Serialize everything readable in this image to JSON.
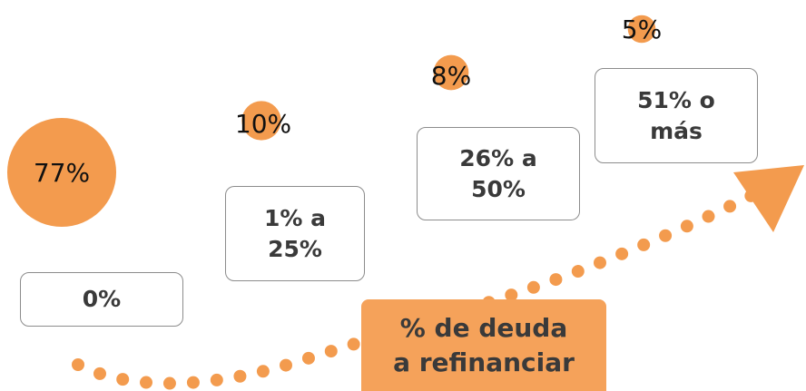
{
  "chart_data": {
    "type": "bubble",
    "title": "% de deuda a refinanciar",
    "categories": [
      "0%",
      "1%  a 25%",
      "26% a 50%",
      "51% o más"
    ],
    "values": [
      77,
      10,
      8,
      5
    ],
    "value_labels": [
      "77%",
      "10%",
      "8%",
      "5%"
    ],
    "color": "#f39b4e"
  }
}
